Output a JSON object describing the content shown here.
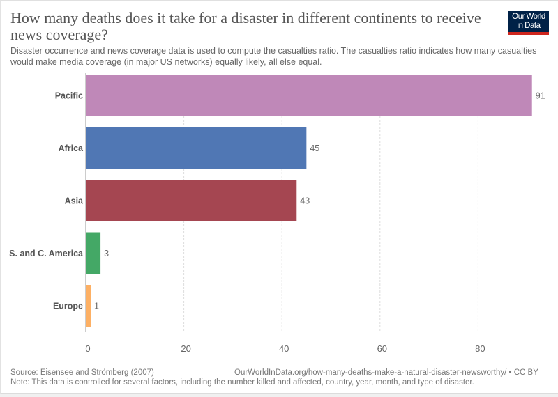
{
  "header": {
    "title": "How many deaths does it take for a disaster in different continents to receive news coverage?",
    "subtitle": "Disaster occurrence and news coverage data is used to compute the casualties ratio. The casualties ratio indicates how many casualties would make media coverage (in major US networks) equally likely, all else equal.",
    "logo_line1": "Our World",
    "logo_line2": "in Data"
  },
  "footer": {
    "source": "Source: Eisensee and Strömberg (2007)",
    "url": "OurWorldInData.org/how-many-deaths-make-a-natural-disaster-newsworthy/ • CC BY",
    "note": "Note: This data is controlled for several factors, including the number killed and affected, country, year, month, and type of disaster."
  },
  "colors": {
    "logo_bg": "#002147",
    "logo_accent": "#ce261e"
  },
  "chart_data": {
    "type": "bar",
    "orientation": "horizontal",
    "title": "How many deaths does it take for a disaster in different continents to receive news coverage?",
    "xlabel": "",
    "ylabel": "",
    "categories": [
      "Pacific",
      "Africa",
      "Asia",
      "S. and C. America",
      "Europe"
    ],
    "values": [
      91,
      45,
      43,
      3,
      1
    ],
    "colors": [
      "#bf88b8",
      "#5077b4",
      "#a54651",
      "#44a866",
      "#fdb064"
    ],
    "value_labels": [
      "91",
      "45",
      "43",
      "3",
      "1"
    ],
    "xticks": [
      0,
      20,
      40,
      60,
      80
    ],
    "xtick_labels": [
      "0",
      "20",
      "40",
      "60",
      "80"
    ],
    "xlim": [
      0,
      96
    ],
    "grid": "vertical dashed",
    "legend": "none"
  }
}
